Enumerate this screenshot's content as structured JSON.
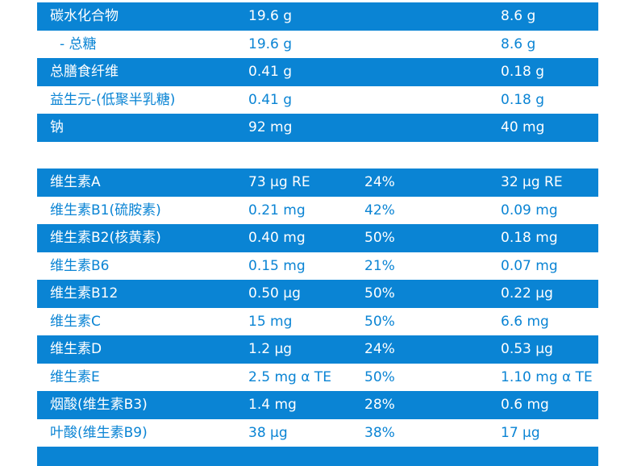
{
  "colors": {
    "accent": "#0a84d4"
  },
  "table1": [
    {
      "name": "碳水化合物",
      "per": "19.6 g",
      "nrv": "",
      "serve": "8.6 g"
    },
    {
      "name": "- 总糖",
      "per": "19.6 g",
      "nrv": "",
      "serve": "8.6 g"
    },
    {
      "name": "总膳食纤维",
      "per": "0.41 g",
      "nrv": "",
      "serve": "0.18 g"
    },
    {
      "name": "益生元-(低聚半乳糖)",
      "per": "0.41 g",
      "nrv": "",
      "serve": "0.18 g"
    },
    {
      "name": "钠",
      "per": "92 mg",
      "nrv": "",
      "serve": "40 mg"
    }
  ],
  "table2": [
    {
      "name": "维生素A",
      "per": "73 µg RE",
      "nrv": "24%",
      "serve": "32 µg RE"
    },
    {
      "name": "维生素B1(硫胺素)",
      "per": "0.21 mg",
      "nrv": "42%",
      "serve": "0.09 mg"
    },
    {
      "name": "维生素B2(核黄素)",
      "per": "0.40 mg",
      "nrv": "50%",
      "serve": "0.18 mg"
    },
    {
      "name": "维生素B6",
      "per": "0.15 mg",
      "nrv": "21%",
      "serve": "0.07 mg"
    },
    {
      "name": "维生素B12",
      "per": "0.50 µg",
      "nrv": "50%",
      "serve": "0.22 µg"
    },
    {
      "name": "维生素C",
      "per": "15 mg",
      "nrv": "50%",
      "serve": "6.6 mg"
    },
    {
      "name": "维生素D",
      "per": "1.2 µg",
      "nrv": "24%",
      "serve": "0.53 µg"
    },
    {
      "name": "维生素E",
      "per": "2.5 mg α TE",
      "nrv": "50%",
      "serve": "1.10 mg α TE"
    },
    {
      "name": "烟酸(维生素B3)",
      "per": "1.4 mg",
      "nrv": "28%",
      "serve": "0.6 mg"
    },
    {
      "name": "叶酸(维生素B9)",
      "per": "38 µg",
      "nrv": "38%",
      "serve": "17 µg"
    }
  ]
}
